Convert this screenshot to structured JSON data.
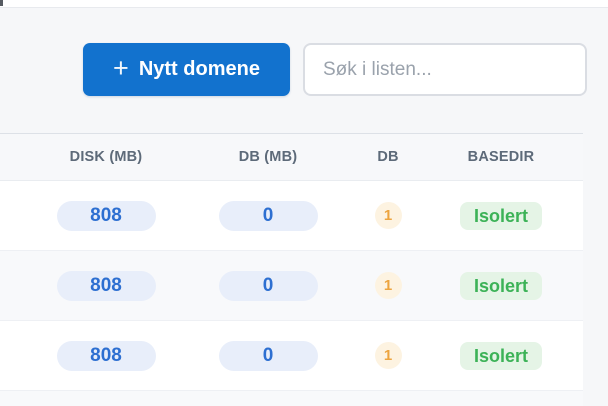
{
  "page": {
    "background_color": "#f6f7f9"
  },
  "toolbar": {
    "new_domain_button": {
      "label": "Nytt domene",
      "icon": "plus-icon",
      "color": "#1272ce",
      "text_color": "#ffffff"
    },
    "search": {
      "placeholder": "Søk i listen...",
      "value": ""
    }
  },
  "table": {
    "columns": [
      {
        "id": "disk_mb",
        "label": "DISK (MB)"
      },
      {
        "id": "db_mb",
        "label": "DB (MB)"
      },
      {
        "id": "db_count",
        "label": "DB"
      },
      {
        "id": "basedir",
        "label": "BASEDIR"
      }
    ],
    "rows": [
      {
        "disk_mb": "808",
        "db_mb": "0",
        "db_count": "1",
        "basedir": "Isolert"
      },
      {
        "disk_mb": "808",
        "db_mb": "0",
        "db_count": "1",
        "basedir": "Isolert"
      },
      {
        "disk_mb": "808",
        "db_mb": "0",
        "db_count": "1",
        "basedir": "Isolert"
      }
    ],
    "badge_colors": {
      "metric_pill_bg": "#e8eefa",
      "metric_pill_text": "#2d6fd1",
      "count_circle_bg": "#fdf3e1",
      "count_circle_text": "#eda43e",
      "basedir_badge_bg": "#e5f4e6",
      "basedir_badge_text": "#3cb257"
    }
  }
}
